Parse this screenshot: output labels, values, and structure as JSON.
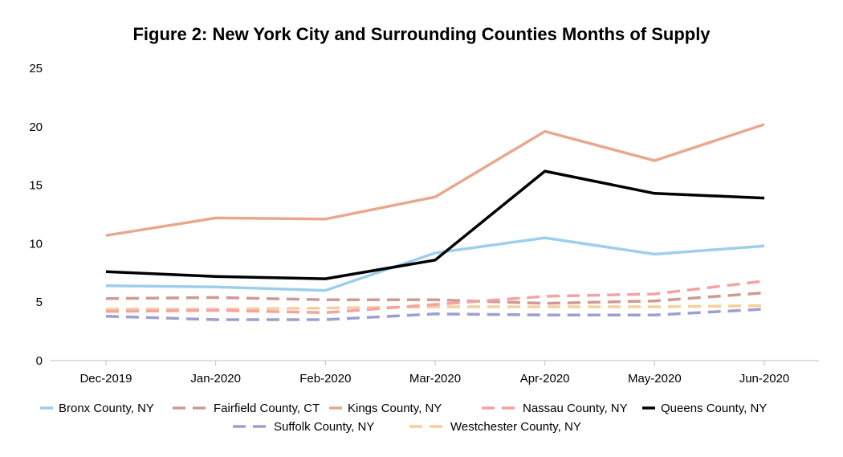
{
  "chart_data": {
    "type": "line",
    "title": "Figure 2: New York City and Surrounding Counties Months of Supply",
    "xlabel": "",
    "ylabel": "",
    "categories": [
      "Dec-2019",
      "Jan-2020",
      "Feb-2020",
      "Mar-2020",
      "Apr-2020",
      "May-2020",
      "Jun-2020"
    ],
    "ylim": [
      0,
      25
    ],
    "yticks": [
      "0",
      "5",
      "10",
      "15",
      "20",
      "25"
    ],
    "grid": false,
    "legend_position": "bottom",
    "series": [
      {
        "name": "Bronx County, NY",
        "color": "#9dcfec",
        "dash": "solid",
        "values": [
          6.4,
          6.3,
          6.0,
          9.2,
          10.5,
          9.1,
          9.8
        ]
      },
      {
        "name": "Fairfield County, CT",
        "color": "#cc9b95",
        "dash": "dashed",
        "values": [
          5.3,
          5.4,
          5.2,
          5.2,
          4.9,
          5.1,
          5.8
        ]
      },
      {
        "name": "Kings County, NY",
        "color": "#e8a88e",
        "dash": "solid",
        "values": [
          10.7,
          12.2,
          12.1,
          14.0,
          19.6,
          17.1,
          20.2
        ]
      },
      {
        "name": "Nassau County, NY",
        "color": "#f4a3a3",
        "dash": "dashed",
        "values": [
          4.2,
          4.3,
          4.1,
          4.8,
          5.5,
          5.7,
          6.8
        ]
      },
      {
        "name": "Queens County, NY",
        "color": "#000000",
        "dash": "solid",
        "values": [
          7.6,
          7.2,
          7.0,
          8.6,
          16.2,
          14.3,
          13.9
        ]
      },
      {
        "name": "Suffolk County, NY",
        "color": "#9da0cc",
        "dash": "dashed",
        "values": [
          3.8,
          3.5,
          3.5,
          4.0,
          3.9,
          3.9,
          4.4
        ]
      },
      {
        "name": "Westchester County, NY",
        "color": "#f7cf9a",
        "dash": "dashed",
        "values": [
          4.4,
          4.4,
          4.5,
          4.6,
          4.6,
          4.6,
          4.7
        ]
      }
    ]
  }
}
